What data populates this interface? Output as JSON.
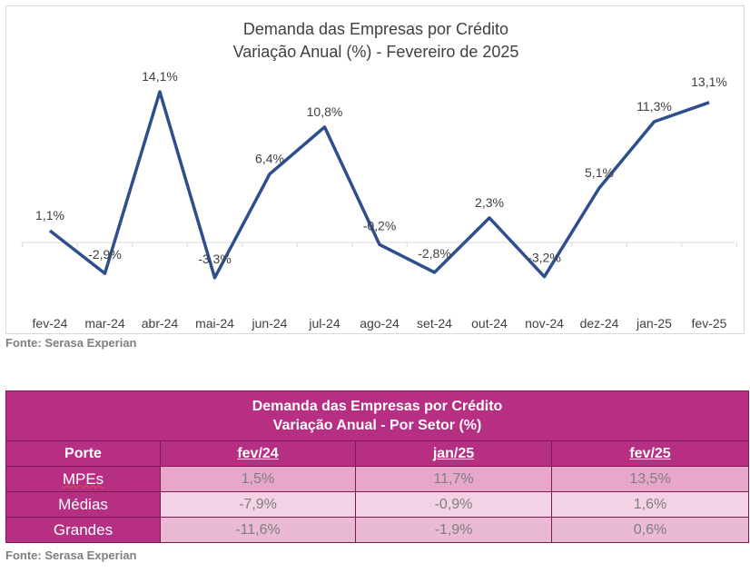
{
  "chart_data": {
    "type": "line",
    "title": "Demanda das Empresas por Crédito",
    "subtitle": "Variação Anual (%) - Fevereiro de 2025",
    "categories": [
      "fev-24",
      "mar-24",
      "abr-24",
      "mai-24",
      "jun-24",
      "jul-24",
      "ago-24",
      "set-24",
      "out-24",
      "nov-24",
      "dez-24",
      "jan-25",
      "fev-25"
    ],
    "values": [
      1.1,
      -2.9,
      14.1,
      -3.3,
      6.4,
      10.8,
      -0.2,
      -2.8,
      2.3,
      -3.2,
      5.1,
      11.3,
      13.1
    ],
    "data_labels": [
      "1,1%",
      "-2,9%",
      "14,1%",
      "-3,3%",
      "6,4%",
      "10,8%",
      "-0,2%",
      "-2,8%",
      "2,3%",
      "-3,2%",
      "5,1%",
      "11,3%",
      "13,1%"
    ],
    "color": "#2e4f8c",
    "grid": false,
    "legend": "none"
  },
  "chart_source": "Fonte: Serasa Experian",
  "table": {
    "title_line1": "Demanda das Empresas por Crédito",
    "title_line2": "Variação Anual - Por Setor (%)",
    "headers": [
      "Porte",
      "fev/24",
      "jan/25",
      "fev/25"
    ],
    "rows": [
      {
        "label": "MPEs",
        "values": [
          "1,5%",
          "11,7%",
          "13,5%"
        ]
      },
      {
        "label": "Médias",
        "values": [
          "-7,9%",
          "-0,9%",
          "1,6%"
        ]
      },
      {
        "label": "Grandes",
        "values": [
          "-11,6%",
          "-1,9%",
          "0,6%"
        ]
      }
    ],
    "colors": {
      "header": "#b72f83",
      "cell_dark": "#e7a7cb",
      "cell_light": "#f4d2e5"
    }
  },
  "table_source": "Fonte: Serasa Experian"
}
